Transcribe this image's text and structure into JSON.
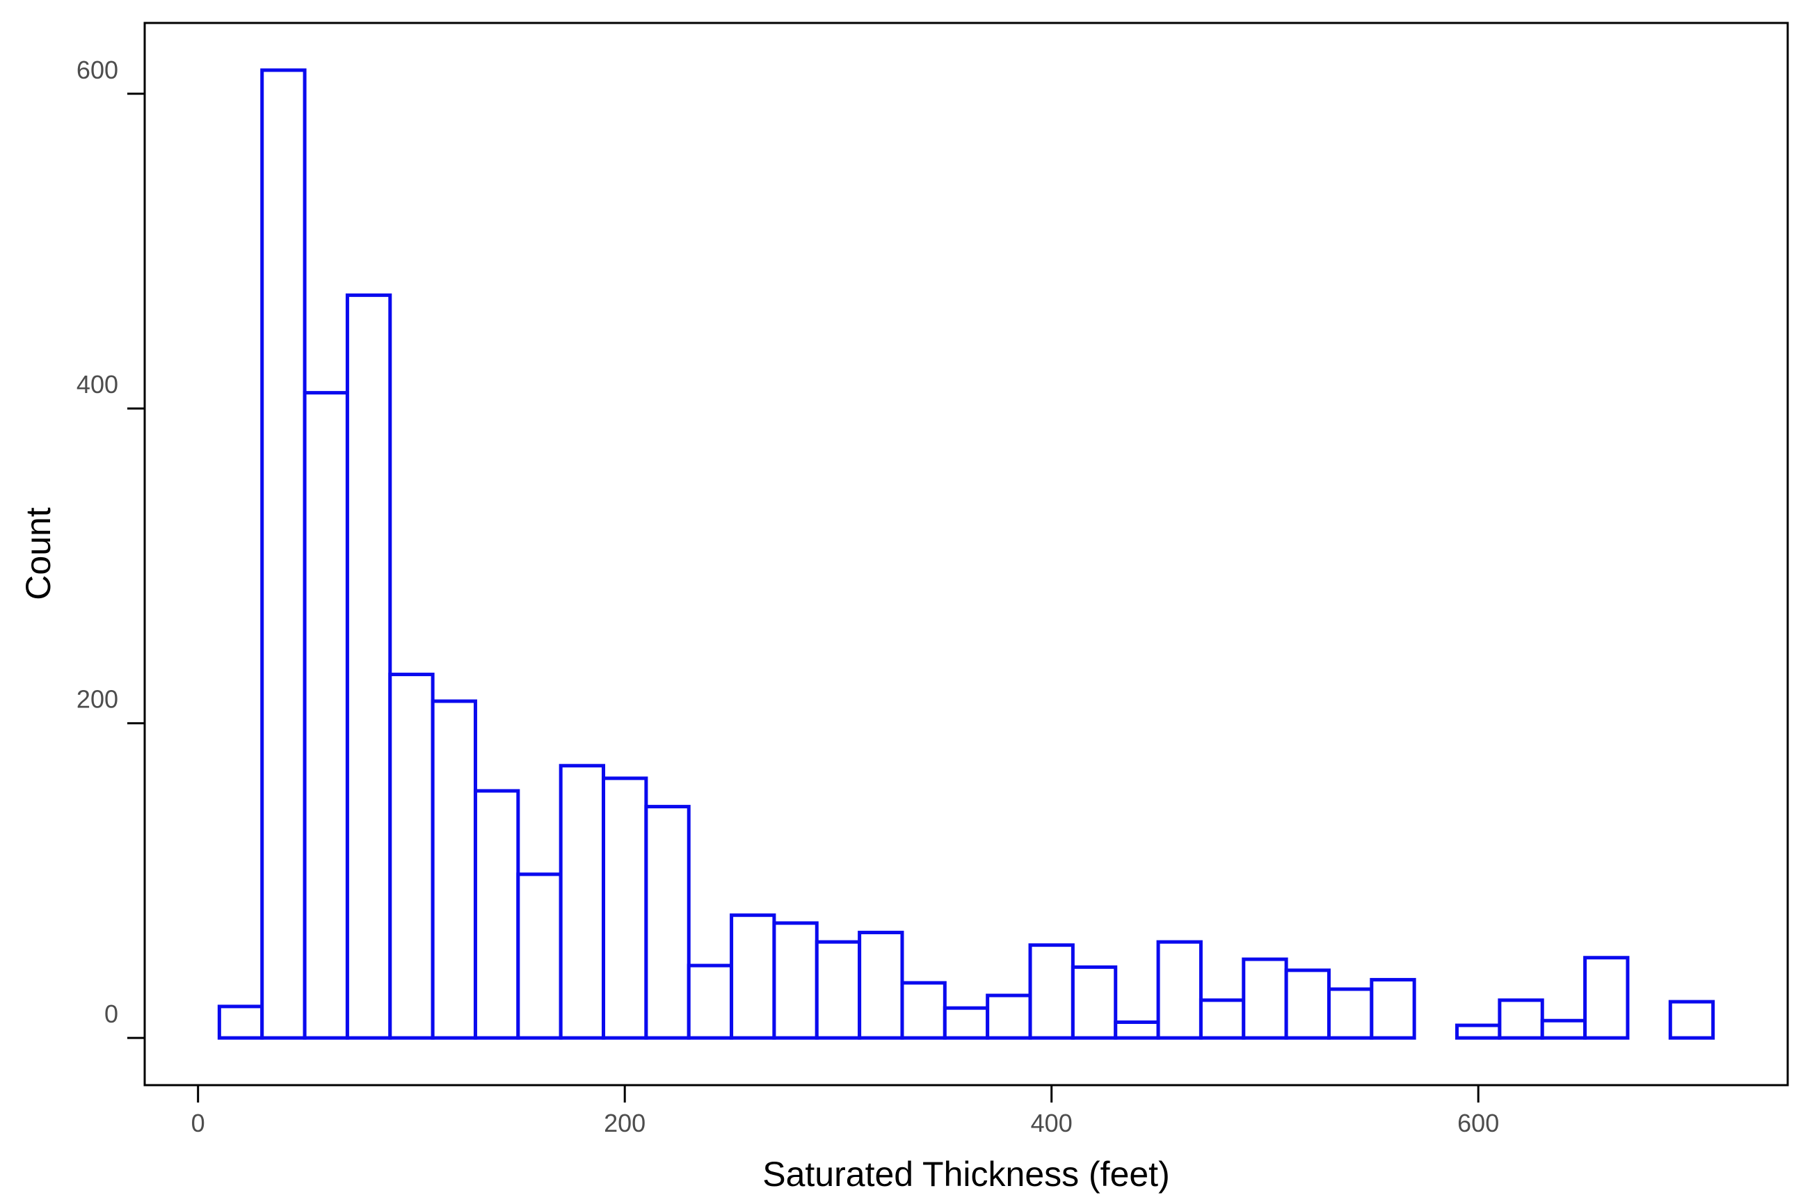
{
  "chart_data": {
    "type": "bar",
    "subtype": "histogram",
    "title": "",
    "xlabel": "Saturated Thickness (feet)",
    "ylabel": "Count",
    "xlim": [
      -25,
      745
    ],
    "ylim": [
      -30,
      645
    ],
    "bin_width": 20,
    "bins": [
      {
        "x0": 10,
        "x1": 30,
        "count": 20
      },
      {
        "x0": 30,
        "x1": 50,
        "count": 615
      },
      {
        "x0": 50,
        "x1": 70,
        "count": 410
      },
      {
        "x0": 70,
        "x1": 90,
        "count": 472
      },
      {
        "x0": 90,
        "x1": 110,
        "count": 231
      },
      {
        "x0": 110,
        "x1": 130,
        "count": 214
      },
      {
        "x0": 130,
        "x1": 150,
        "count": 157
      },
      {
        "x0": 150,
        "x1": 170,
        "count": 104
      },
      {
        "x0": 170,
        "x1": 190,
        "count": 173
      },
      {
        "x0": 190,
        "x1": 210,
        "count": 165
      },
      {
        "x0": 210,
        "x1": 230,
        "count": 147
      },
      {
        "x0": 230,
        "x1": 250,
        "count": 46
      },
      {
        "x0": 250,
        "x1": 270,
        "count": 78
      },
      {
        "x0": 270,
        "x1": 290,
        "count": 73
      },
      {
        "x0": 290,
        "x1": 310,
        "count": 61
      },
      {
        "x0": 310,
        "x1": 330,
        "count": 67
      },
      {
        "x0": 330,
        "x1": 350,
        "count": 35
      },
      {
        "x0": 350,
        "x1": 370,
        "count": 19
      },
      {
        "x0": 370,
        "x1": 390,
        "count": 27
      },
      {
        "x0": 390,
        "x1": 410,
        "count": 59
      },
      {
        "x0": 410,
        "x1": 430,
        "count": 45
      },
      {
        "x0": 430,
        "x1": 450,
        "count": 10
      },
      {
        "x0": 450,
        "x1": 470,
        "count": 61
      },
      {
        "x0": 470,
        "x1": 490,
        "count": 24
      },
      {
        "x0": 490,
        "x1": 510,
        "count": 50
      },
      {
        "x0": 510,
        "x1": 530,
        "count": 43
      },
      {
        "x0": 530,
        "x1": 550,
        "count": 31
      },
      {
        "x0": 550,
        "x1": 570,
        "count": 37
      },
      {
        "x0": 570,
        "x1": 590,
        "count": 0
      },
      {
        "x0": 590,
        "x1": 610,
        "count": 8
      },
      {
        "x0": 610,
        "x1": 630,
        "count": 24
      },
      {
        "x0": 630,
        "x1": 650,
        "count": 11
      },
      {
        "x0": 650,
        "x1": 670,
        "count": 51
      },
      {
        "x0": 670,
        "x1": 690,
        "count": 0
      },
      {
        "x0": 690,
        "x1": 710,
        "count": 23
      }
    ],
    "x_ticks": [
      0,
      200,
      400,
      600
    ],
    "x_tick_labels": [
      "0",
      "200",
      "400",
      "600"
    ],
    "y_ticks": [
      0,
      200,
      400,
      600
    ],
    "y_tick_labels": [
      "0",
      "200",
      "400",
      "600"
    ],
    "grid": false,
    "legend": "none",
    "colors": {
      "bar_outline": "#0a0aee",
      "bar_fill": "#ffffff",
      "frame": "#000000",
      "tick_label": "#4d4d4d",
      "axis_title": "#000000"
    }
  }
}
